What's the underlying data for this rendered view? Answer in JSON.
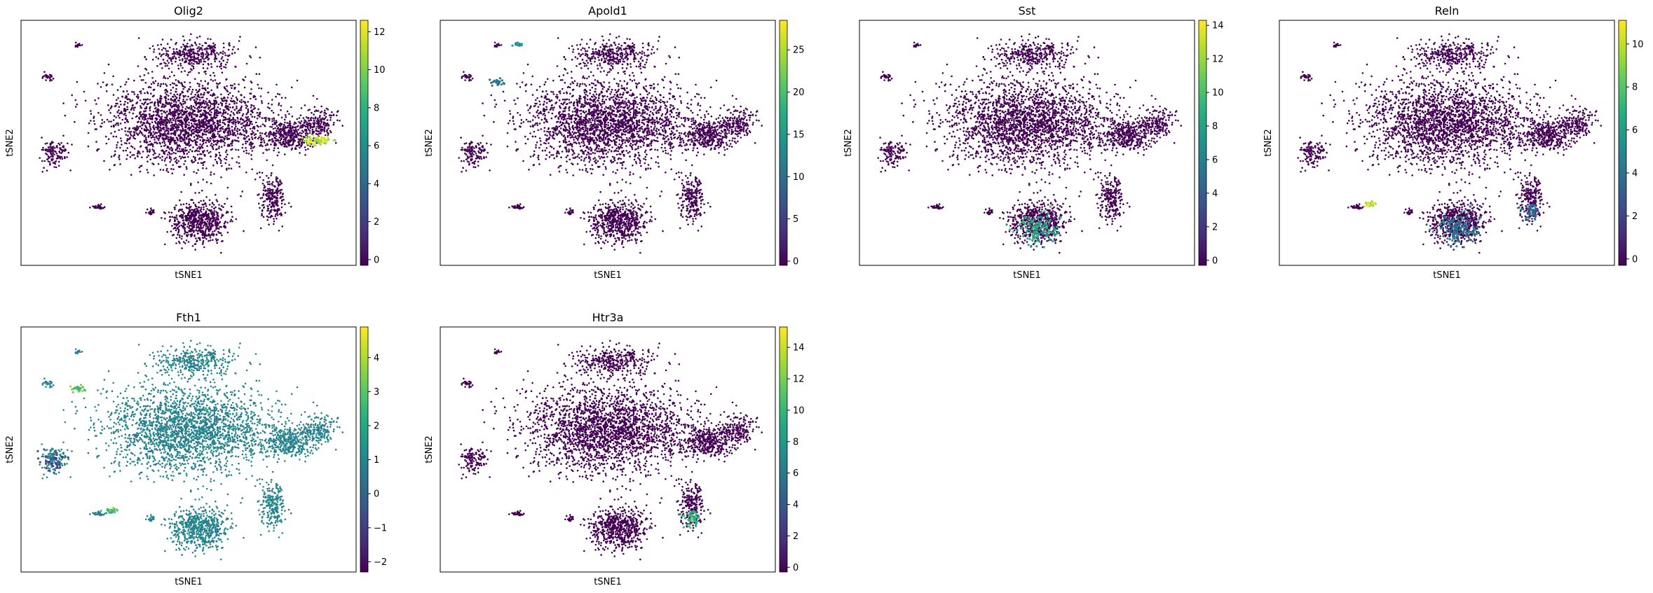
{
  "chart_data": [
    {
      "type": "scatter",
      "title": "Olig2",
      "xlabel": "tSNE1",
      "ylabel": "tSNE2",
      "colorbar": {
        "min": -0.3,
        "max": 12.6,
        "ticks": [
          0,
          2,
          4,
          6,
          8,
          10,
          12
        ]
      },
      "highlights": [
        {
          "region": "right-arm",
          "level": 0.9
        }
      ]
    },
    {
      "type": "scatter",
      "title": "Apold1",
      "xlabel": "tSNE1",
      "ylabel": "tSNE2",
      "colorbar": {
        "min": -0.5,
        "max": 28.5,
        "ticks": [
          0,
          5,
          10,
          15,
          20,
          25
        ]
      },
      "highlights": [
        {
          "region": "top-small",
          "level": 0.45
        },
        {
          "region": "upper-left-small",
          "level": 0.4
        }
      ]
    },
    {
      "type": "scatter",
      "title": "Sst",
      "xlabel": "tSNE1",
      "ylabel": "tSNE2",
      "colorbar": {
        "min": -0.3,
        "max": 14.3,
        "ticks": [
          0,
          2,
          4,
          6,
          8,
          10,
          12,
          14
        ]
      },
      "highlights": [
        {
          "region": "bottom-cluster",
          "level": 0.6
        }
      ]
    },
    {
      "type": "scatter",
      "title": "Reln",
      "xlabel": "tSNE1",
      "ylabel": "tSNE2",
      "colorbar": {
        "min": -0.3,
        "max": 11.1,
        "ticks": [
          0,
          2,
          4,
          6,
          8,
          10
        ]
      },
      "highlights": [
        {
          "region": "mid-left-small",
          "level": 0.9
        },
        {
          "region": "bottom-cluster",
          "level": 0.4
        },
        {
          "region": "right-lower",
          "level": 0.35
        }
      ]
    },
    {
      "type": "scatter",
      "title": "Fth1",
      "xlabel": "tSNE1",
      "ylabel": "tSNE2",
      "colorbar": {
        "min": -2.3,
        "max": 4.9,
        "ticks": [
          -2,
          -1,
          0,
          1,
          2,
          3,
          4
        ]
      },
      "baseline_level": 0.45,
      "highlights": [
        {
          "region": "upper-left-small",
          "level": 0.75
        },
        {
          "region": "mid-left-small",
          "level": 0.7
        },
        {
          "region": "far-left",
          "level": 0.25
        }
      ]
    },
    {
      "type": "scatter",
      "title": "Htr3a",
      "xlabel": "tSNE1",
      "ylabel": "tSNE2",
      "colorbar": {
        "min": -0.3,
        "max": 15.3,
        "ticks": [
          0,
          2,
          4,
          6,
          8,
          10,
          12,
          14
        ]
      },
      "highlights": [
        {
          "region": "right-lower",
          "level": 0.65
        }
      ]
    }
  ],
  "colormap": "viridis",
  "colors": {
    "low": "#440154",
    "mid": "#21918c",
    "high": "#fde725"
  }
}
